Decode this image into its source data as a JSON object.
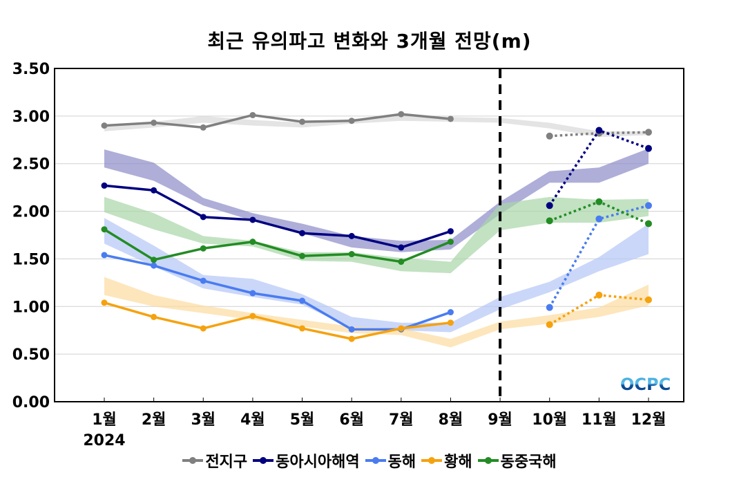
{
  "chart_data": {
    "type": "line",
    "title": "최근 유의파고 변화와 3개월 전망(m)",
    "xlabel": "",
    "ylabel": "",
    "year_label": "2024",
    "categories": [
      "1월",
      "2월",
      "3월",
      "4월",
      "5월",
      "6월",
      "7월",
      "8월",
      "9월",
      "10월",
      "11월",
      "12월"
    ],
    "ylim": [
      0,
      3.5
    ],
    "yticks": [
      "0.00",
      "0.50",
      "1.00",
      "1.50",
      "2.00",
      "2.50",
      "3.00",
      "3.50"
    ],
    "ytick_values": [
      0,
      0.5,
      1.0,
      1.5,
      2.0,
      2.5,
      3.0,
      3.5
    ],
    "grid": true,
    "forecast_divider_category": "9월",
    "legend_position": "bottom",
    "watermark": "OCPC",
    "series": [
      {
        "name": "전지구",
        "color": "#808080",
        "band_color": "#d9d9d9",
        "observed": [
          2.9,
          2.93,
          2.88,
          3.01,
          2.94,
          2.95,
          3.02,
          2.97,
          null,
          null,
          null,
          null
        ],
        "forecast": [
          null,
          null,
          null,
          null,
          null,
          null,
          null,
          null,
          null,
          2.79,
          2.82,
          2.83
        ],
        "band_upper": [
          2.9,
          2.94,
          3.0,
          2.96,
          2.93,
          2.97,
          3.0,
          2.99,
          2.98,
          2.93,
          2.84,
          2.84
        ],
        "band_lower": [
          2.84,
          2.88,
          2.93,
          2.9,
          2.88,
          2.92,
          2.95,
          2.94,
          2.93,
          2.87,
          2.78,
          2.8
        ]
      },
      {
        "name": "동아시아해역",
        "color": "#000080",
        "band_color": "#8c8cc8",
        "observed": [
          2.27,
          2.22,
          1.94,
          1.91,
          1.77,
          1.74,
          1.62,
          1.79,
          null,
          null,
          null,
          null
        ],
        "forecast": [
          null,
          null,
          null,
          null,
          null,
          null,
          null,
          null,
          null,
          2.06,
          2.85,
          2.66
        ],
        "band_upper": [
          2.65,
          2.51,
          2.14,
          1.98,
          1.87,
          1.74,
          1.69,
          1.7,
          2.1,
          2.42,
          2.46,
          2.66
        ],
        "band_lower": [
          2.46,
          2.32,
          2.06,
          1.9,
          1.77,
          1.62,
          1.57,
          1.6,
          1.97,
          2.3,
          2.3,
          2.5
        ]
      },
      {
        "name": "동해",
        "color": "#4a7cf0",
        "band_color": "#b3c6f7",
        "observed": [
          1.54,
          1.43,
          1.27,
          1.14,
          1.06,
          0.76,
          0.76,
          0.94,
          null,
          null,
          null,
          null
        ],
        "forecast": [
          null,
          null,
          null,
          null,
          null,
          null,
          null,
          null,
          null,
          0.99,
          1.92,
          2.06
        ],
        "band_upper": [
          1.93,
          1.64,
          1.33,
          1.29,
          1.13,
          0.89,
          0.83,
          0.83,
          1.1,
          1.26,
          1.52,
          1.87
        ],
        "band_lower": [
          1.66,
          1.42,
          1.19,
          1.1,
          1.02,
          0.77,
          0.75,
          0.73,
          0.97,
          1.15,
          1.37,
          1.55
        ]
      },
      {
        "name": "황해",
        "color": "#f5a20f",
        "band_color": "#fcdca0",
        "observed": [
          1.04,
          0.89,
          0.77,
          0.9,
          0.77,
          0.66,
          0.77,
          0.83,
          null,
          null,
          null,
          null
        ],
        "forecast": [
          null,
          null,
          null,
          null,
          null,
          null,
          null,
          null,
          null,
          0.81,
          1.12,
          1.07
        ],
        "band_upper": [
          1.31,
          1.12,
          1.01,
          0.93,
          0.86,
          0.79,
          0.77,
          0.66,
          0.84,
          0.91,
          0.99,
          1.23
        ],
        "band_lower": [
          1.12,
          1.0,
          0.93,
          0.86,
          0.79,
          0.72,
          0.7,
          0.57,
          0.76,
          0.82,
          0.89,
          1.01
        ]
      },
      {
        "name": "동중국해",
        "color": "#238c23",
        "band_color": "#a8d5a8",
        "observed": [
          1.81,
          1.49,
          1.61,
          1.68,
          1.53,
          1.55,
          1.47,
          1.68,
          null,
          null,
          null,
          null
        ],
        "forecast": [
          null,
          null,
          null,
          null,
          null,
          null,
          null,
          null,
          null,
          1.9,
          2.1,
          1.87
        ],
        "band_upper": [
          2.15,
          1.98,
          1.74,
          1.69,
          1.57,
          1.57,
          1.51,
          1.47,
          2.08,
          2.15,
          2.12,
          2.13
        ],
        "band_lower": [
          1.99,
          1.81,
          1.66,
          1.63,
          1.48,
          1.47,
          1.37,
          1.35,
          1.8,
          1.88,
          1.88,
          1.95
        ]
      }
    ]
  }
}
